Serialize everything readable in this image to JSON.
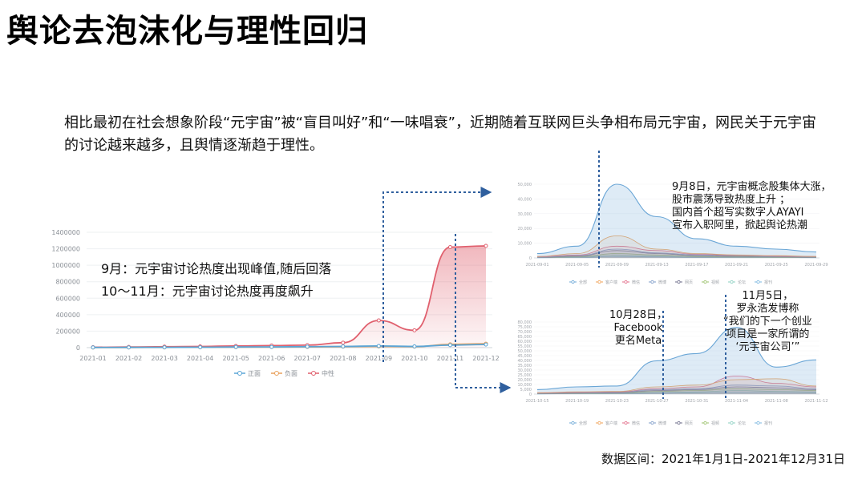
{
  "title": "舆论去泡沫化与理性回归",
  "intro": "相比最初在社会想象阶段“元宇宙”被“盲目叫好”和“一味唱衰”，近期随着互联网巨头争相布局元宇宙，网民关于元宇宙的讨论越来越多，且舆情逐渐趋于理性。",
  "notes": [
    "9月：元宇宙讨论热度出现峰值,随后回落",
    "10～11月：元宇宙讨论热度再度飙升"
  ],
  "annotations": {
    "sep8": [
      "9月8日，元宇宙概念股集体大涨，",
      "股市震荡导致热度上升 ；",
      "国内首个超写实数字人AYAYI",
      "宣布入职阿里，掀起舆论热潮"
    ],
    "oct28": [
      "10月28日，",
      "Facebook",
      "更名Meta"
    ],
    "nov5": [
      "11月5日，",
      "罗永浩发博称",
      "“我们的下一个创业",
      "项目是一家所谓的",
      "‘元宇宙公司’”"
    ]
  },
  "source": "数据区间：2021年1月1日-2021年12月31日",
  "colors": {
    "positive": "#5aa5d6",
    "negative": "#e9a15c",
    "neutral": "#e0606e",
    "axis": "#cfd4da",
    "arrow": "#2f5f9e"
  },
  "chart_data": [
    {
      "type": "area",
      "categories": [
        "2021-01",
        "2021-02",
        "2021-03",
        "2021-04",
        "2021-05",
        "2021-06",
        "2021-07",
        "2021-08",
        "2021-09",
        "2021-10",
        "2021-11",
        "2021-12"
      ],
      "ylim": [
        0,
        1400000
      ],
      "yticks": [
        "0",
        "200000",
        "400000",
        "600000",
        "800000",
        "1000000",
        "1200000",
        "1400000"
      ],
      "legend": "bottom-center",
      "series": [
        {
          "name": "正面",
          "values": [
            2000,
            3000,
            4000,
            5000,
            8000,
            9000,
            12000,
            15000,
            20000,
            15000,
            30000,
            38000
          ]
        },
        {
          "name": "负面",
          "values": [
            1000,
            2000,
            3000,
            4000,
            6000,
            7000,
            9000,
            12000,
            15000,
            12000,
            40000,
            48000
          ]
        },
        {
          "name": "中性",
          "values": [
            5000,
            8000,
            12000,
            15000,
            20000,
            25000,
            30000,
            60000,
            330000,
            210000,
            1220000,
            1235000
          ]
        }
      ]
    },
    {
      "type": "area",
      "categories": [
        "2021-09-01",
        "2021-09-05",
        "2021-09-09",
        "2021-09-13",
        "2021-09-17",
        "2021-09-21",
        "2021-09-25",
        "2021-09-29"
      ],
      "ylim": [
        0,
        50000
      ],
      "yticks": [
        "0",
        "10,000",
        "20,000",
        "30,000",
        "40,000",
        "50,000"
      ],
      "legend": "bottom-center",
      "series": [
        {
          "name": "全部",
          "values": [
            3000,
            8000,
            50000,
            28000,
            13000,
            8000,
            6000,
            4000
          ]
        },
        {
          "name": "客户端",
          "values": [
            1000,
            3000,
            15000,
            6000,
            3000,
            2000,
            1500,
            1000
          ]
        },
        {
          "name": "微信",
          "values": [
            800,
            2000,
            8000,
            5000,
            2500,
            1800,
            1200,
            900
          ]
        },
        {
          "name": "微博",
          "values": [
            500,
            1500,
            6000,
            3500,
            2000,
            1400,
            1000,
            700
          ]
        },
        {
          "name": "网页",
          "values": [
            400,
            1200,
            5000,
            3000,
            1600,
            1100,
            800,
            500
          ]
        },
        {
          "name": "视频",
          "values": [
            300,
            800,
            3000,
            2000,
            1000,
            700,
            500,
            400
          ]
        },
        {
          "name": "论坛",
          "values": [
            200,
            500,
            2000,
            1200,
            700,
            500,
            400,
            300
          ]
        },
        {
          "name": "报刊",
          "values": [
            100,
            300,
            1000,
            700,
            400,
            300,
            200,
            150
          ]
        }
      ]
    },
    {
      "type": "area",
      "categories": [
        "2021-10-15",
        "2021-10-19",
        "2021-10-23",
        "2021-10-27",
        "2021-10-31",
        "2021-11-04",
        "2021-11-08",
        "2021-11-12"
      ],
      "ylim": [
        0,
        80000
      ],
      "yticks": [
        "0",
        "5,000",
        "10,000",
        "20,000",
        "25,000",
        "30,000",
        "35,000",
        "40,000",
        "45,000",
        "50,000",
        "55,000",
        "60,000",
        "65,000",
        "70,000",
        "75,000",
        "80,000"
      ],
      "legend": "bottom-center",
      "series": [
        {
          "name": "全部",
          "values": [
            5000,
            8000,
            9000,
            37000,
            45000,
            74000,
            30000,
            38000
          ]
        },
        {
          "name": "客户端",
          "values": [
            1500,
            2500,
            3000,
            8000,
            10000,
            16000,
            17000,
            9000
          ]
        },
        {
          "name": "微信",
          "values": [
            1200,
            2000,
            2500,
            6000,
            8000,
            20000,
            12000,
            8000
          ]
        },
        {
          "name": "微博",
          "values": [
            900,
            1500,
            2000,
            5000,
            6000,
            10000,
            9000,
            6000
          ]
        },
        {
          "name": "网页",
          "values": [
            700,
            1200,
            1500,
            4000,
            5000,
            8000,
            7000,
            5000
          ]
        },
        {
          "name": "视频",
          "values": [
            500,
            900,
            1200,
            3000,
            4000,
            6000,
            5000,
            4000
          ]
        },
        {
          "name": "论坛",
          "values": [
            300,
            600,
            800,
            2000,
            2500,
            4000,
            3000,
            2500
          ]
        },
        {
          "name": "报刊",
          "values": [
            200,
            400,
            500,
            1000,
            1500,
            2000,
            1800,
            1500
          ]
        }
      ]
    }
  ]
}
